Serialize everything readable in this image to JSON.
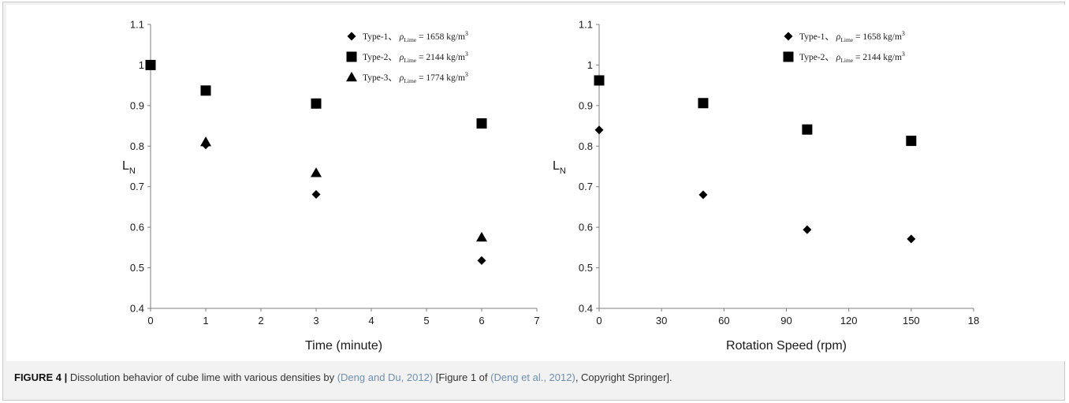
{
  "chart_data": [
    {
      "type": "scatter",
      "xlabel": "Time (minute)",
      "ylabel": "L",
      "ylabel_sub": "N",
      "xlim": [
        0,
        7
      ],
      "ylim": [
        0.4,
        1.1
      ],
      "x_ticks": [
        "0",
        "1",
        "2",
        "3",
        "4",
        "5",
        "6",
        "7"
      ],
      "y_ticks": [
        "0.4",
        "0.5",
        "0.6",
        "0.7",
        "0.8",
        "0.9",
        "1",
        "1.1"
      ],
      "legend_position": "top-right",
      "series": [
        {
          "name": "Type-1",
          "density": "= 1658 kg/m",
          "marker": "diamond",
          "x": [
            0,
            1,
            3,
            6
          ],
          "y": [
            1.0,
            0.803,
            0.681,
            0.518
          ]
        },
        {
          "name": "Type-2",
          "density": "= 2144 kg/m",
          "marker": "square",
          "x": [
            0,
            1,
            3,
            6
          ],
          "y": [
            1.0,
            0.937,
            0.905,
            0.856
          ]
        },
        {
          "name": "Type-3",
          "density": "= 1774 kg/m",
          "marker": "triangle",
          "x": [
            1,
            3,
            6
          ],
          "y": [
            0.81,
            0.734,
            0.575
          ]
        }
      ]
    },
    {
      "type": "scatter",
      "xlabel": "Rotation Speed  (rpm)",
      "ylabel": "L",
      "ylabel_sub": "N",
      "xlim": [
        0,
        180
      ],
      "ylim": [
        0.4,
        1.1
      ],
      "x_ticks": [
        "0",
        "30",
        "60",
        "90",
        "120",
        "150",
        "18"
      ],
      "y_ticks": [
        "0.4",
        "0.5",
        "0.6",
        "0.7",
        "0.8",
        "0.9",
        "1",
        "1.1"
      ],
      "legend_position": "top-right",
      "series": [
        {
          "name": "Type-1",
          "density": "= 1658 kg/m",
          "marker": "diamond",
          "x": [
            0,
            50,
            100,
            150
          ],
          "y": [
            0.84,
            0.68,
            0.594,
            0.571
          ]
        },
        {
          "name": "Type-2",
          "density": "= 2144 kg/m",
          "marker": "square",
          "x": [
            0,
            50,
            100,
            150
          ],
          "y": [
            0.962,
            0.906,
            0.841,
            0.813
          ]
        }
      ]
    }
  ],
  "legend_symbols": {
    "rho": "ρ",
    "sub": "Lime",
    "sup": "3",
    "sep": "、"
  },
  "caption": {
    "label": "FIGURE 4 |",
    "text1": " Dissolution behavior of cube lime with various densities by ",
    "ref1": "(Deng and Du, 2012)",
    "text2": " [Figure 1 of ",
    "ref2": "(Deng et al., 2012)",
    "text3": ", Copyright Springer]."
  },
  "colors": {
    "marker": "#000000",
    "axis": "#7f7f7f",
    "caption_ref": "#6f8fb0"
  }
}
